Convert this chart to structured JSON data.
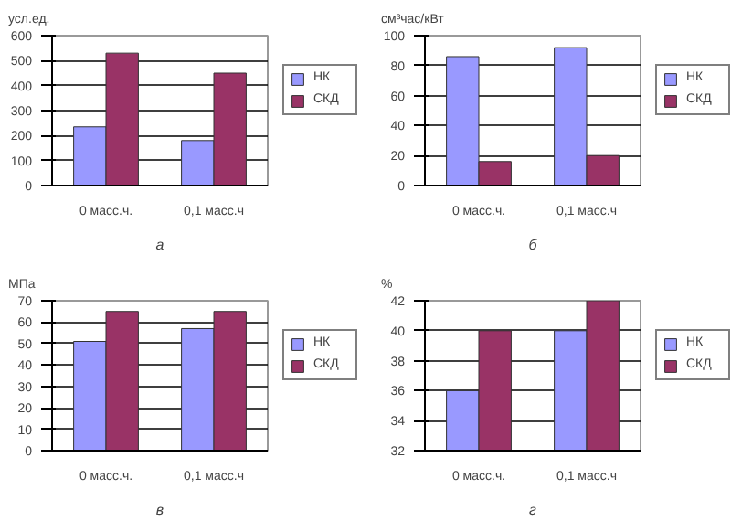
{
  "chart_data": [
    {
      "type": "bar",
      "title": "а",
      "ylabel": "усл.ед.",
      "categories": [
        "0 масс.ч.",
        "0,1 масс.ч"
      ],
      "ylim": [
        0,
        600
      ],
      "yticks": [
        0,
        100,
        200,
        300,
        400,
        500,
        600
      ],
      "grid": "y",
      "legend": "right",
      "series": [
        {
          "name": "НК",
          "color": "#9999ff",
          "values": [
            235,
            180
          ]
        },
        {
          "name": "СКД",
          "color": "#993366",
          "values": [
            530,
            450
          ]
        }
      ]
    },
    {
      "type": "bar",
      "title": "б",
      "ylabel": "см³час/кВт",
      "categories": [
        "0 масс.ч.",
        "0,1 масс.ч"
      ],
      "ylim": [
        0,
        100
      ],
      "yticks": [
        0,
        20,
        40,
        60,
        80,
        100
      ],
      "grid": "y",
      "legend": "right",
      "series": [
        {
          "name": "НК",
          "color": "#9999ff",
          "values": [
            86,
            92
          ]
        },
        {
          "name": "СКД",
          "color": "#993366",
          "values": [
            16,
            20
          ]
        }
      ]
    },
    {
      "type": "bar",
      "title": "в",
      "ylabel": "МПа",
      "categories": [
        "0 масс.ч.",
        "0,1 масс.ч"
      ],
      "ylim": [
        0,
        70
      ],
      "yticks": [
        0,
        10,
        20,
        30,
        40,
        50,
        60,
        70
      ],
      "grid": "y",
      "legend": "right",
      "series": [
        {
          "name": "НК",
          "color": "#9999ff",
          "values": [
            51,
            57
          ]
        },
        {
          "name": "СКД",
          "color": "#993366",
          "values": [
            65,
            65
          ]
        }
      ]
    },
    {
      "type": "bar",
      "title": "г",
      "ylabel": "%",
      "categories": [
        "0 масс.ч.",
        "0,1 масс.ч"
      ],
      "ylim": [
        32,
        42
      ],
      "yticks": [
        32,
        34,
        36,
        38,
        40,
        42
      ],
      "grid": "y",
      "legend": "right",
      "series": [
        {
          "name": "НК",
          "color": "#9999ff",
          "values": [
            36,
            40
          ]
        },
        {
          "name": "СКД",
          "color": "#993366",
          "values": [
            40,
            42
          ]
        }
      ]
    }
  ]
}
